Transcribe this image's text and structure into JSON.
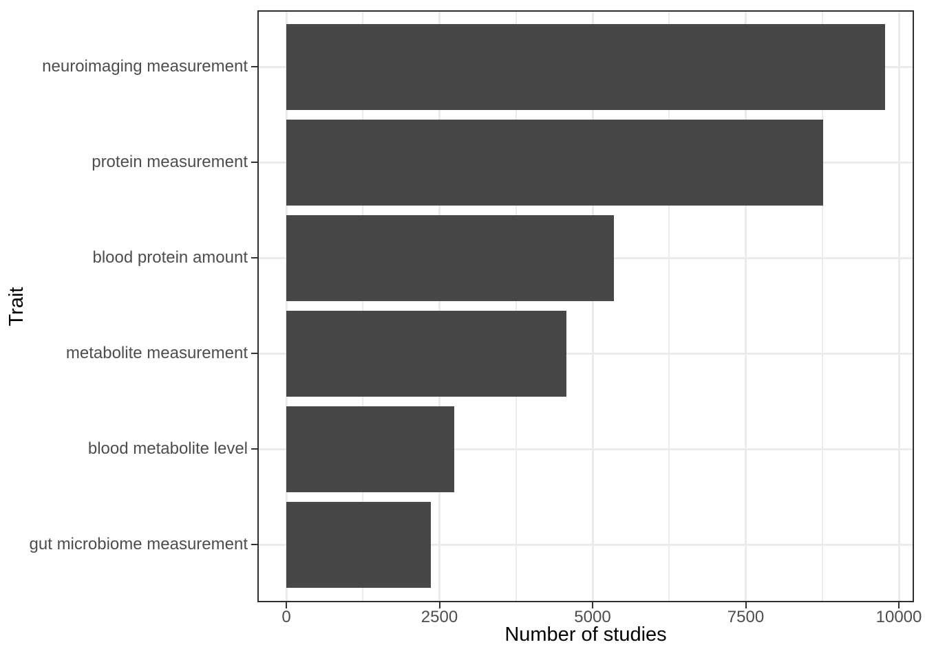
{
  "chart_data": {
    "type": "bar",
    "orientation": "horizontal",
    "title": "",
    "xlabel": "Number of studies",
    "ylabel": "Trait",
    "categories": [
      "neuroimaging measurement",
      "protein measurement",
      "blood protein amount",
      "metabolite measurement",
      "blood metabolite level",
      "gut microbiome measurement"
    ],
    "values": [
      9780,
      8760,
      5350,
      4570,
      2740,
      2360
    ],
    "xlim": [
      0,
      10000
    ],
    "x_ticks": [
      0,
      2500,
      5000,
      7500,
      10000
    ],
    "x_tick_labels": [
      "0",
      "2500",
      "5000",
      "7500",
      "10000"
    ],
    "x_minor_gridlines": [
      1250,
      3750,
      6250,
      8750
    ],
    "grid": "on",
    "legend": "none",
    "bar_width_fraction": 0.9,
    "colors": {
      "bar_fill": "#474747",
      "gridline_major": "#ebebeb",
      "gridline_minor": "#ebebeb",
      "panel_border": "#2e2e2e",
      "tick_mark": "#333333",
      "tick_label": "#4d4d4d",
      "axis_title": "#000000",
      "background": "#ffffff"
    }
  }
}
